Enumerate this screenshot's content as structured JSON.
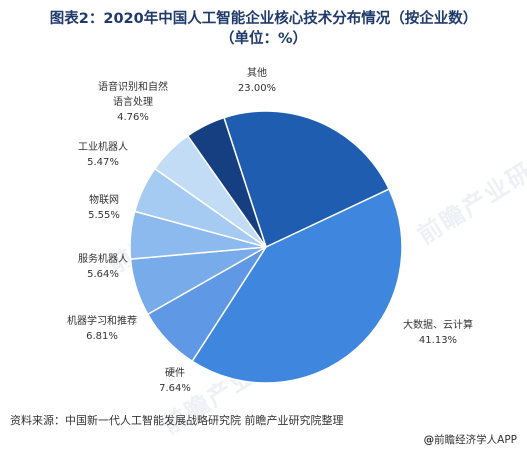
{
  "chart_data": {
    "type": "pie",
    "title": "图表2：2020年中国人工智能企业核心技术分布情况（按企业数）",
    "subtitle": "（单位：%）",
    "slices": [
      {
        "label": "其他",
        "value": 23.0,
        "value_label": "23.00%",
        "color": "#1f5db0"
      },
      {
        "label": "大数据、云计算",
        "value": 41.13,
        "value_label": "41.13%",
        "color": "#3f86de"
      },
      {
        "label": "硬件",
        "value": 7.64,
        "value_label": "7.64%",
        "color": "#5f98e4"
      },
      {
        "label": "机器学习和推荐",
        "value": 6.81,
        "value_label": "6.81%",
        "color": "#78abe9"
      },
      {
        "label": "服务机器人",
        "value": 5.64,
        "value_label": "5.64%",
        "color": "#8cbaee"
      },
      {
        "label": "物联网",
        "value": 5.55,
        "value_label": "5.55%",
        "color": "#a6cbf2"
      },
      {
        "label": "工业机器人",
        "value": 5.47,
        "value_label": "5.47%",
        "color": "#c3dcf6"
      },
      {
        "label": "语音识别和自然语言处理",
        "value": 4.76,
        "value_label": "4.76%",
        "color": "#153f80"
      }
    ],
    "start_slice": "其他",
    "direction": "clockwise",
    "legend": "none"
  },
  "footer": {
    "source": "资料来源：中国新一代人工智能发展战略研究院 前瞻产业研究院整理",
    "credit_mark": "@",
    "credit_text": "前瞻经济学人APP"
  },
  "watermark_text": "前瞻产业研究院"
}
